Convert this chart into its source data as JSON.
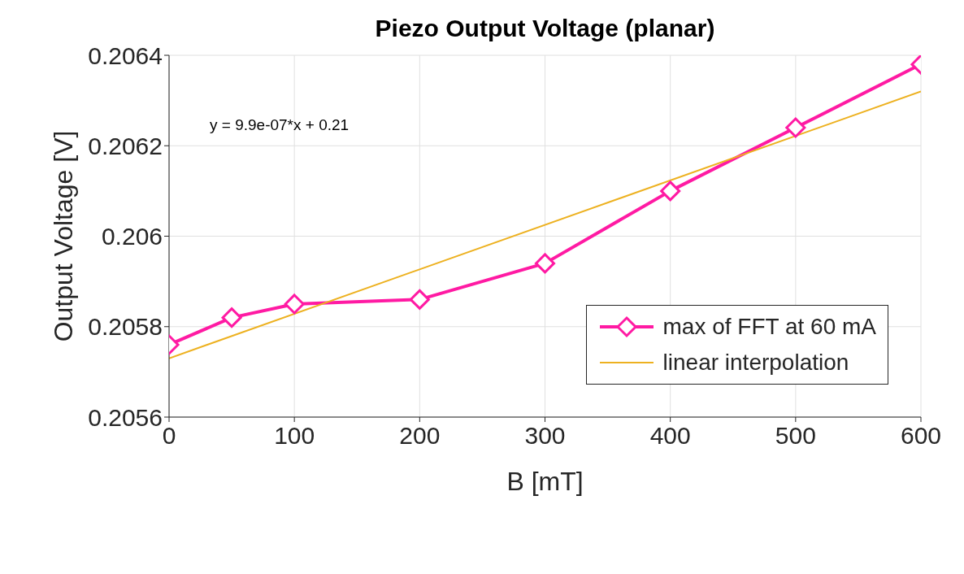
{
  "chart_data": {
    "type": "line",
    "title": "Piezo Output Voltage (planar)",
    "xlabel": "B [mT]",
    "ylabel": "Output Voltage [V]",
    "x": [
      0,
      50,
      100,
      200,
      300,
      400,
      500,
      600
    ],
    "series": [
      {
        "name": "max of FFT at 60 mA",
        "color": "#ff1aa3",
        "values": [
          0.20576,
          0.20582,
          0.20585,
          0.20586,
          0.20594,
          0.2061,
          0.20624,
          0.20638
        ],
        "marker": "diamond"
      },
      {
        "name": "linear interpolation",
        "type": "line",
        "color": "#edb120",
        "x": [
          0,
          600
        ],
        "values": [
          0.20573,
          0.20632
        ],
        "marker": "none"
      }
    ],
    "xlim": [
      0,
      600
    ],
    "xticks": [
      0,
      100,
      200,
      300,
      400,
      500,
      600
    ],
    "ylim": [
      0.2056,
      0.2064
    ],
    "yticks": [
      0.2056,
      0.2058,
      0.206,
      0.2062,
      0.2064
    ],
    "grid": true,
    "legend": "bottom right",
    "annotations": [
      "y = 9.9e-07*x + 0.21"
    ]
  }
}
